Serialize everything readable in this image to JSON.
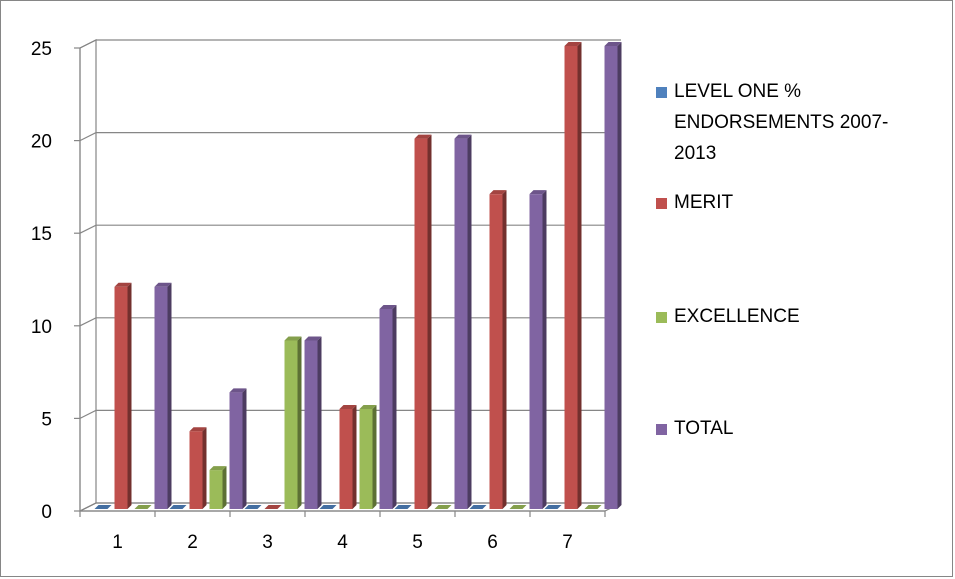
{
  "chart_data": {
    "type": "bar",
    "categories": [
      "1",
      "2",
      "3",
      "4",
      "5",
      "6",
      "7"
    ],
    "series": [
      {
        "name": "LEVEL ONE % ENDORSEMENTS 2007-2013",
        "values": [
          0,
          0,
          0,
          0,
          0,
          0,
          0
        ],
        "color": "#4F81BD",
        "legend_lines": [
          "LEVEL ONE %",
          "ENDORSEMENTS 2007-",
          "2013"
        ]
      },
      {
        "name": "MERIT",
        "values": [
          12,
          4.2,
          0,
          5.4,
          20,
          17,
          25
        ],
        "color": "#C0504D",
        "legend_lines": [
          "MERIT"
        ]
      },
      {
        "name": "EXCELLENCE",
        "values": [
          0,
          2.1,
          9.1,
          5.4,
          0,
          0,
          0
        ],
        "color": "#9BBB59",
        "legend_lines": [
          "EXCELLENCE"
        ]
      },
      {
        "name": "TOTAL",
        "values": [
          12,
          6.3,
          9.1,
          10.8,
          20,
          17,
          25
        ],
        "color": "#8064A2",
        "legend_lines": [
          "TOTAL"
        ]
      }
    ],
    "y_ticks": [
      "0",
      "5",
      "10",
      "15",
      "20",
      "25"
    ],
    "ylim": [
      0,
      25
    ],
    "grid": true,
    "legend_position": "right",
    "style": "3d-clustered-column"
  }
}
